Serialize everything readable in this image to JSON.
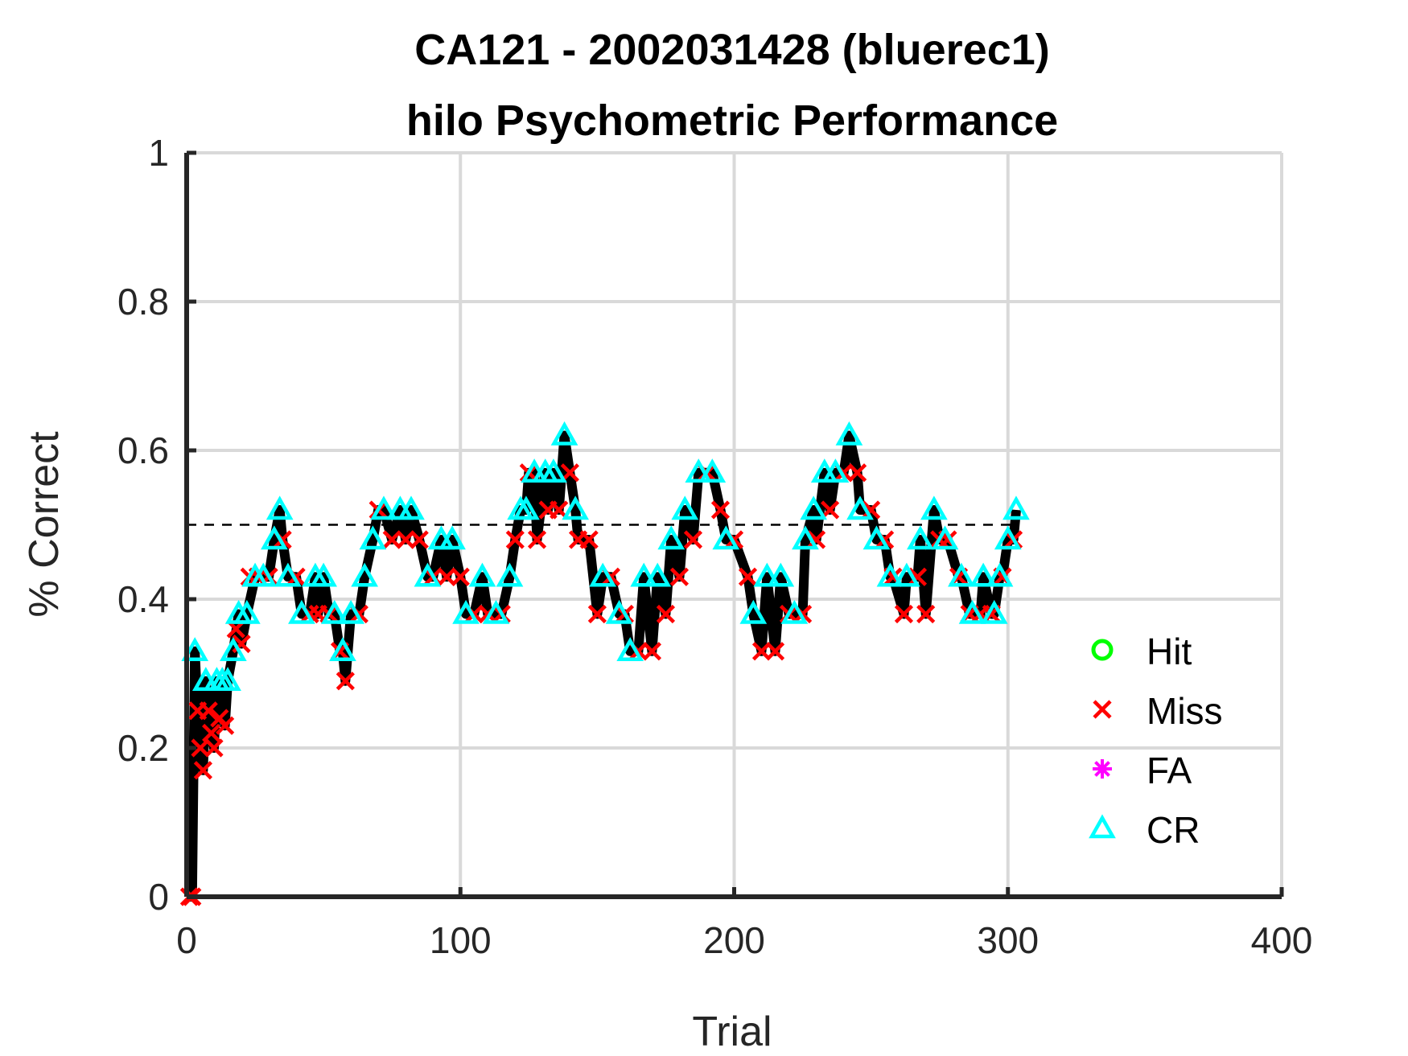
{
  "chart_data": {
    "type": "line",
    "title": "CA121 - 2002031428 (bluerec1)",
    "subtitle": "hilo Psychometric Performance",
    "xlabel": "Trial",
    "ylabel": "% Correct",
    "xlim": [
      0,
      400
    ],
    "ylim": [
      0,
      1
    ],
    "xticks": [
      0,
      100,
      200,
      300,
      400
    ],
    "yticks": [
      0,
      0.2,
      0.4,
      0.6,
      0.8,
      1
    ],
    "xtick_labels": [
      "0",
      "100",
      "200",
      "300",
      "400"
    ],
    "ytick_labels": [
      "0",
      "0.2",
      "0.4",
      "0.6",
      "0.8",
      "1"
    ],
    "grid": true,
    "reference_line": {
      "y": 0.5,
      "style": "dashed",
      "color": "#000000"
    },
    "legend_position": "right",
    "series": [
      {
        "name": "Hit",
        "marker": "circle",
        "color": "#00ff00",
        "x": [],
        "y": []
      },
      {
        "name": "Miss",
        "marker": "x",
        "color": "#ff0000",
        "x": [
          1,
          2,
          4,
          5,
          6,
          8,
          9,
          10,
          12,
          14,
          18,
          20,
          23,
          26,
          30,
          35,
          40,
          45,
          48,
          52,
          56,
          58,
          63,
          70,
          75,
          80,
          85,
          90,
          95,
          100,
          105,
          110,
          115,
          120,
          125,
          128,
          132,
          136,
          140,
          143,
          147,
          150,
          155,
          160,
          165,
          170,
          175,
          180,
          185,
          190,
          195,
          200,
          205,
          210,
          215,
          220,
          225,
          230,
          235,
          240,
          245,
          250,
          255,
          258,
          262,
          267,
          270,
          275,
          278,
          282,
          286,
          290,
          294,
          298,
          302
        ],
        "y": [
          0,
          0,
          0.25,
          0.2,
          0.17,
          0.25,
          0.22,
          0.2,
          0.24,
          0.23,
          0.36,
          0.34,
          0.43,
          0.43,
          0.43,
          0.48,
          0.43,
          0.38,
          0.38,
          0.38,
          0.33,
          0.29,
          0.38,
          0.52,
          0.48,
          0.48,
          0.48,
          0.43,
          0.43,
          0.43,
          0.38,
          0.38,
          0.38,
          0.48,
          0.57,
          0.48,
          0.52,
          0.52,
          0.57,
          0.48,
          0.48,
          0.38,
          0.43,
          0.38,
          0.33,
          0.33,
          0.38,
          0.43,
          0.48,
          0.57,
          0.52,
          0.48,
          0.43,
          0.33,
          0.33,
          0.38,
          0.38,
          0.48,
          0.52,
          0.57,
          0.57,
          0.52,
          0.48,
          0.43,
          0.38,
          0.43,
          0.38,
          0.48,
          0.48,
          0.43,
          0.38,
          0.38,
          0.38,
          0.43,
          0.48
        ]
      },
      {
        "name": "FA",
        "marker": "asterisk",
        "color": "#ff00ff",
        "x": [],
        "y": []
      },
      {
        "name": "CR",
        "marker": "triangle",
        "color": "#00ffff",
        "x": [
          3,
          7,
          11,
          13,
          15,
          17,
          19,
          22,
          25,
          28,
          32,
          34,
          37,
          42,
          47,
          50,
          54,
          57,
          60,
          65,
          68,
          72,
          78,
          82,
          88,
          93,
          97,
          102,
          108,
          113,
          118,
          122,
          124,
          127,
          131,
          134,
          138,
          142,
          152,
          158,
          162,
          167,
          172,
          177,
          182,
          187,
          192,
          197,
          207,
          212,
          217,
          222,
          226,
          229,
          233,
          237,
          242,
          246,
          252,
          257,
          263,
          268,
          273,
          277,
          283,
          287,
          291,
          295,
          297,
          300,
          303
        ],
        "y": [
          0.33,
          0.29,
          0.29,
          0.29,
          0.29,
          0.33,
          0.38,
          0.38,
          0.43,
          0.43,
          0.48,
          0.52,
          0.43,
          0.38,
          0.43,
          0.43,
          0.38,
          0.33,
          0.38,
          0.43,
          0.48,
          0.52,
          0.52,
          0.52,
          0.43,
          0.48,
          0.48,
          0.38,
          0.43,
          0.38,
          0.43,
          0.52,
          0.52,
          0.57,
          0.57,
          0.57,
          0.62,
          0.52,
          0.43,
          0.38,
          0.33,
          0.43,
          0.43,
          0.48,
          0.52,
          0.57,
          0.57,
          0.48,
          0.38,
          0.43,
          0.43,
          0.38,
          0.48,
          0.52,
          0.57,
          0.57,
          0.62,
          0.52,
          0.48,
          0.43,
          0.43,
          0.48,
          0.52,
          0.48,
          0.43,
          0.38,
          0.43,
          0.38,
          0.43,
          0.48,
          0.52
        ]
      }
    ],
    "performance_line": {
      "color": "#000000",
      "x": [
        1,
        2,
        3,
        4,
        5,
        6,
        7,
        8,
        9,
        10,
        11,
        12,
        13,
        14,
        15,
        17,
        19,
        20,
        22,
        25,
        28,
        30,
        32,
        34,
        35,
        37,
        40,
        42,
        45,
        47,
        48,
        50,
        52,
        54,
        56,
        57,
        58,
        60,
        63,
        65,
        68,
        70,
        72,
        75,
        78,
        80,
        82,
        85,
        88,
        90,
        93,
        95,
        97,
        100,
        102,
        105,
        108,
        110,
        113,
        115,
        118,
        120,
        122,
        124,
        125,
        127,
        128,
        131,
        132,
        134,
        136,
        138,
        140,
        142,
        143,
        147,
        150,
        152,
        155,
        158,
        160,
        162,
        165,
        167,
        170,
        172,
        175,
        177,
        180,
        182,
        185,
        187,
        190,
        192,
        195,
        197,
        200,
        205,
        207,
        210,
        212,
        215,
        217,
        220,
        222,
        225,
        226,
        229,
        230,
        233,
        235,
        237,
        240,
        242,
        245,
        246,
        250,
        252,
        255,
        257,
        258,
        262,
        263,
        267,
        268,
        270,
        273,
        275,
        277,
        278,
        282,
        283,
        286,
        287,
        290,
        291,
        294,
        295,
        297,
        298,
        300,
        302,
        303
      ],
      "y": [
        0,
        0,
        0.33,
        0.25,
        0.2,
        0.17,
        0.29,
        0.25,
        0.22,
        0.2,
        0.29,
        0.24,
        0.29,
        0.23,
        0.29,
        0.33,
        0.38,
        0.34,
        0.38,
        0.43,
        0.43,
        0.43,
        0.48,
        0.52,
        0.48,
        0.43,
        0.43,
        0.38,
        0.38,
        0.43,
        0.38,
        0.43,
        0.38,
        0.38,
        0.33,
        0.33,
        0.29,
        0.38,
        0.38,
        0.43,
        0.48,
        0.52,
        0.52,
        0.48,
        0.52,
        0.48,
        0.52,
        0.48,
        0.43,
        0.43,
        0.48,
        0.43,
        0.48,
        0.43,
        0.38,
        0.38,
        0.43,
        0.38,
        0.38,
        0.38,
        0.43,
        0.48,
        0.52,
        0.52,
        0.57,
        0.57,
        0.48,
        0.57,
        0.52,
        0.57,
        0.52,
        0.62,
        0.57,
        0.52,
        0.48,
        0.48,
        0.38,
        0.43,
        0.43,
        0.38,
        0.38,
        0.33,
        0.33,
        0.43,
        0.33,
        0.43,
        0.38,
        0.48,
        0.43,
        0.52,
        0.48,
        0.57,
        0.57,
        0.57,
        0.52,
        0.48,
        0.48,
        0.43,
        0.38,
        0.33,
        0.43,
        0.33,
        0.43,
        0.38,
        0.38,
        0.38,
        0.48,
        0.52,
        0.48,
        0.57,
        0.52,
        0.57,
        0.57,
        0.62,
        0.57,
        0.52,
        0.52,
        0.48,
        0.48,
        0.43,
        0.43,
        0.38,
        0.43,
        0.43,
        0.48,
        0.38,
        0.52,
        0.48,
        0.48,
        0.48,
        0.43,
        0.43,
        0.38,
        0.38,
        0.38,
        0.43,
        0.38,
        0.38,
        0.43,
        0.43,
        0.48,
        0.48,
        0.52
      ]
    }
  }
}
